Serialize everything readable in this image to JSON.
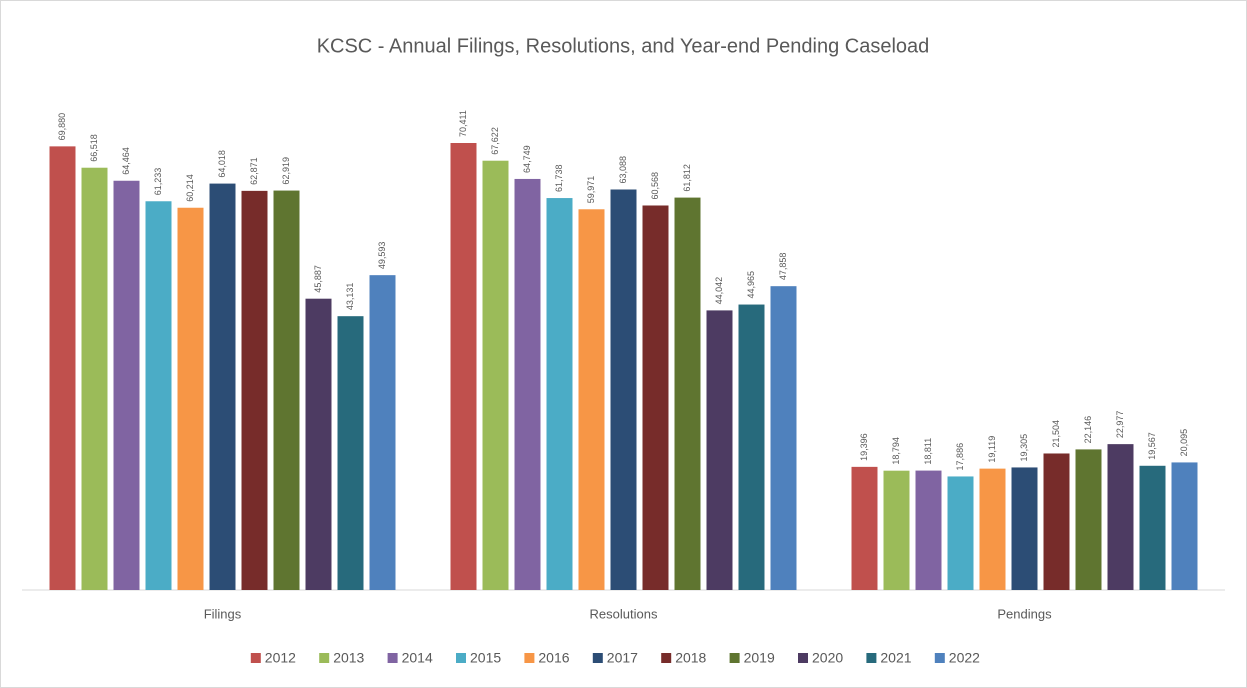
{
  "chart_data": {
    "type": "bar",
    "title": "KCSC - Annual Filings, Resolutions, and Year-end Pending Caseload",
    "categories": [
      "Filings",
      "Resolutions",
      "Pendings"
    ],
    "legend": "bottom",
    "series": [
      {
        "name": "2012",
        "color": "#c0504d",
        "values": [
          69880,
          70411,
          19396
        ],
        "value_labels": [
          "69,880",
          "70,411",
          "19,396"
        ]
      },
      {
        "name": "2013",
        "color": "#9bbb59",
        "values": [
          66518,
          67622,
          18794
        ],
        "value_labels": [
          "66,518",
          "67,622",
          "18,794"
        ]
      },
      {
        "name": "2014",
        "color": "#8064a2",
        "values": [
          64464,
          64749,
          18811
        ],
        "value_labels": [
          "64,464",
          "64,749",
          "18,811"
        ]
      },
      {
        "name": "2015",
        "color": "#4bacc6",
        "values": [
          61233,
          61738,
          17886
        ],
        "value_labels": [
          "61,233",
          "61,738",
          "17,886"
        ]
      },
      {
        "name": "2016",
        "color": "#f79646",
        "values": [
          60214,
          59971,
          19119
        ],
        "value_labels": [
          "60,214",
          "59,971",
          "19,119"
        ]
      },
      {
        "name": "2017",
        "color": "#2c4d75",
        "values": [
          64018,
          63088,
          19305
        ],
        "value_labels": [
          "64,018",
          "63,088",
          "19,305"
        ]
      },
      {
        "name": "2018",
        "color": "#772c2a",
        "values": [
          62871,
          60568,
          21504
        ],
        "value_labels": [
          "62,871",
          "60,568",
          "21,504"
        ]
      },
      {
        "name": "2019",
        "color": "#5f7530",
        "values": [
          62919,
          61812,
          22146
        ],
        "value_labels": [
          "62,919",
          "61,812",
          "22,146"
        ]
      },
      {
        "name": "2020",
        "color": "#4d3b62",
        "values": [
          45887,
          44042,
          22977
        ],
        "value_labels": [
          "45,887",
          "44,042",
          "22,977"
        ]
      },
      {
        "name": "2021",
        "color": "#276a7c",
        "values": [
          43131,
          44965,
          19567
        ],
        "value_labels": [
          "43,131",
          "44,965",
          "19,567"
        ]
      },
      {
        "name": "2022",
        "color": "#4f81bd",
        "values": [
          49593,
          47858,
          20095
        ],
        "value_labels": [
          "49,593",
          "47,858",
          "20,095"
        ]
      }
    ]
  }
}
